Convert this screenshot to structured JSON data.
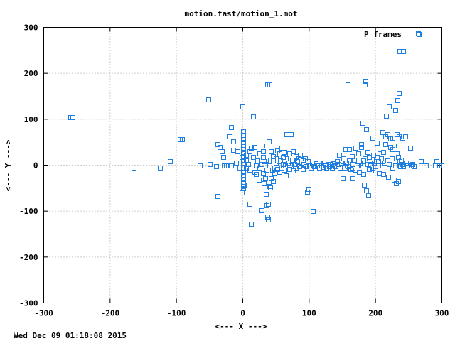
{
  "chart_data": {
    "type": "scatter",
    "title": "motion.fast/motion_1.mot",
    "xlabel": "<--- X --->",
    "ylabel": "<--- Y --->",
    "xlim": [
      -300,
      300
    ],
    "ylim": [
      -300,
      300
    ],
    "xticks": [
      -300,
      -200,
      -100,
      0,
      100,
      200,
      300
    ],
    "yticks": [
      -300,
      -200,
      -100,
      0,
      100,
      200,
      300
    ],
    "xtick_labels": [
      "-300",
      "-200",
      "-100",
      "0",
      "100",
      "200",
      "300"
    ],
    "ytick_labels": [
      "-300",
      "-200",
      "-100",
      "0",
      "100",
      "200",
      "300"
    ],
    "grid": true,
    "legend_position": "top-right",
    "series": [
      {
        "name": "P frames",
        "color": "#1e7fe0",
        "marker": "square",
        "points": [
          [
            -260,
            105
          ],
          [
            -257,
            105
          ],
          [
            -165,
            -5
          ],
          [
            -125,
            -5
          ],
          [
            -110,
            8
          ],
          [
            -95,
            57
          ],
          [
            -92,
            57
          ],
          [
            -65,
            0
          ],
          [
            -52,
            143
          ],
          [
            -50,
            3
          ],
          [
            -40,
            -2
          ],
          [
            -38,
            -68
          ],
          [
            -38,
            45
          ],
          [
            -35,
            40
          ],
          [
            -32,
            30
          ],
          [
            -30,
            18
          ],
          [
            -28,
            0
          ],
          [
            -25,
            0
          ],
          [
            -20,
            63
          ],
          [
            -18,
            0
          ],
          [
            -18,
            82
          ],
          [
            -15,
            33
          ],
          [
            -15,
            52
          ],
          [
            -10,
            5
          ],
          [
            -8,
            30
          ],
          [
            -5,
            -5
          ],
          [
            -2,
            18
          ],
          [
            -1,
            128
          ],
          [
            0,
            73
          ],
          [
            0,
            65
          ],
          [
            0,
            57
          ],
          [
            0,
            50
          ],
          [
            0,
            42
          ],
          [
            0,
            35
          ],
          [
            0,
            28
          ],
          [
            0,
            20
          ],
          [
            0,
            12
          ],
          [
            0,
            5
          ],
          [
            0,
            -5
          ],
          [
            0,
            -15
          ],
          [
            0,
            -22
          ],
          [
            0,
            -30
          ],
          [
            0,
            -38
          ],
          [
            0,
            -45
          ],
          [
            0,
            -50
          ],
          [
            -2,
            -60
          ],
          [
            2,
            -42
          ],
          [
            5,
            -5
          ],
          [
            5,
            10
          ],
          [
            5,
            22
          ],
          [
            8,
            2
          ],
          [
            10,
            -10
          ],
          [
            10,
            30
          ],
          [
            10,
            -85
          ],
          [
            12,
            -128
          ],
          [
            12,
            38
          ],
          [
            15,
            106
          ],
          [
            15,
            18
          ],
          [
            18,
            -15
          ],
          [
            18,
            40
          ],
          [
            20,
            0
          ],
          [
            20,
            -20
          ],
          [
            22,
            10
          ],
          [
            24,
            -32
          ],
          [
            25,
            25
          ],
          [
            25,
            -5
          ],
          [
            28,
            2
          ],
          [
            28,
            -98
          ],
          [
            30,
            18
          ],
          [
            30,
            -18
          ],
          [
            30,
            30
          ],
          [
            32,
            -40
          ],
          [
            32,
            8
          ],
          [
            34,
            -28
          ],
          [
            35,
            12
          ],
          [
            35,
            -62
          ],
          [
            36,
            42
          ],
          [
            36,
            -88
          ],
          [
            36,
            -10
          ],
          [
            37,
            -112
          ],
          [
            37,
            175
          ],
          [
            38,
            -118
          ],
          [
            38,
            -85
          ],
          [
            39,
            52
          ],
          [
            40,
            0
          ],
          [
            40,
            175
          ],
          [
            40,
            -45
          ],
          [
            41,
            -48
          ],
          [
            42,
            -28
          ],
          [
            42,
            30
          ],
          [
            44,
            -10
          ],
          [
            45,
            10
          ],
          [
            45,
            -35
          ],
          [
            46,
            20
          ],
          [
            48,
            -5
          ],
          [
            48,
            -18
          ],
          [
            50,
            5
          ],
          [
            50,
            15
          ],
          [
            52,
            -8
          ],
          [
            52,
            32
          ],
          [
            54,
            0
          ],
          [
            55,
            -15
          ],
          [
            55,
            25
          ],
          [
            56,
            10
          ],
          [
            58,
            -5
          ],
          [
            58,
            38
          ],
          [
            60,
            2
          ],
          [
            60,
            18
          ],
          [
            62,
            -10
          ],
          [
            62,
            28
          ],
          [
            64,
            0
          ],
          [
            65,
            15
          ],
          [
            65,
            -22
          ],
          [
            66,
            68
          ],
          [
            68,
            5
          ],
          [
            70,
            -8
          ],
          [
            70,
            25
          ],
          [
            72,
            68
          ],
          [
            72,
            0
          ],
          [
            74,
            12
          ],
          [
            75,
            -12
          ],
          [
            76,
            30
          ],
          [
            78,
            2
          ],
          [
            80,
            20
          ],
          [
            80,
            -5
          ],
          [
            82,
            8
          ],
          [
            84,
            15
          ],
          [
            85,
            -2
          ],
          [
            86,
            22
          ],
          [
            88,
            5
          ],
          [
            90,
            10
          ],
          [
            90,
            -8
          ],
          [
            92,
            2
          ],
          [
            94,
            15
          ],
          [
            95,
            -2
          ],
          [
            97,
            -58
          ],
          [
            98,
            8
          ],
          [
            99,
            -52
          ],
          [
            100,
            0
          ],
          [
            102,
            -5
          ],
          [
            104,
            6
          ],
          [
            106,
            -100
          ],
          [
            108,
            -3
          ],
          [
            110,
            4
          ],
          [
            112,
            0
          ],
          [
            115,
            -6
          ],
          [
            116,
            5
          ],
          [
            118,
            0
          ],
          [
            120,
            -4
          ],
          [
            122,
            6
          ],
          [
            124,
            0
          ],
          [
            126,
            -5
          ],
          [
            128,
            3
          ],
          [
            130,
            -2
          ],
          [
            132,
            2
          ],
          [
            134,
            -6
          ],
          [
            136,
            4
          ],
          [
            138,
            0
          ],
          [
            140,
            -3
          ],
          [
            142,
            8
          ],
          [
            144,
            2
          ],
          [
            145,
            22
          ],
          [
            146,
            -5
          ],
          [
            148,
            5
          ],
          [
            150,
            -28
          ],
          [
            150,
            0
          ],
          [
            152,
            15
          ],
          [
            154,
            -6
          ],
          [
            155,
            35
          ],
          [
            156,
            5
          ],
          [
            158,
            176
          ],
          [
            158,
            -2
          ],
          [
            160,
            10
          ],
          [
            160,
            35
          ],
          [
            162,
            -8
          ],
          [
            164,
            20
          ],
          [
            165,
            -28
          ],
          [
            165,
            2
          ],
          [
            166,
            -5
          ],
          [
            168,
            12
          ],
          [
            170,
            -10
          ],
          [
            170,
            38
          ],
          [
            172,
            0
          ],
          [
            174,
            25
          ],
          [
            175,
            -15
          ],
          [
            176,
            5
          ],
          [
            178,
            40
          ],
          [
            178,
            45
          ],
          [
            180,
            0
          ],
          [
            180,
            92
          ],
          [
            182,
            -20
          ],
          [
            182,
            10
          ],
          [
            183,
            -42
          ],
          [
            184,
            15
          ],
          [
            184,
            176
          ],
          [
            185,
            183
          ],
          [
            186,
            -55
          ],
          [
            186,
            78
          ],
          [
            188,
            3
          ],
          [
            188,
            28
          ],
          [
            189,
            -66
          ],
          [
            190,
            -8
          ],
          [
            190,
            18
          ],
          [
            192,
            0
          ],
          [
            194,
            12
          ],
          [
            195,
            -5
          ],
          [
            196,
            60
          ],
          [
            197,
            22
          ],
          [
            198,
            5
          ],
          [
            200,
            0
          ],
          [
            200,
            -12
          ],
          [
            202,
            48
          ],
          [
            202,
            18
          ],
          [
            204,
            8
          ],
          [
            205,
            -18
          ],
          [
            206,
            25
          ],
          [
            208,
            15
          ],
          [
            210,
            0
          ],
          [
            210,
            72
          ],
          [
            212,
            -20
          ],
          [
            212,
            28
          ],
          [
            214,
            5
          ],
          [
            215,
            45
          ],
          [
            215,
            62
          ],
          [
            216,
            108
          ],
          [
            218,
            10
          ],
          [
            218,
            68
          ],
          [
            219,
            -25
          ],
          [
            220,
            128
          ],
          [
            220,
            2
          ],
          [
            222,
            40
          ],
          [
            222,
            58
          ],
          [
            224,
            15
          ],
          [
            225,
            60
          ],
          [
            225,
            -5
          ],
          [
            226,
            35
          ],
          [
            228,
            -32
          ],
          [
            228,
            42
          ],
          [
            230,
            0
          ],
          [
            230,
            120
          ],
          [
            231,
            -40
          ],
          [
            232,
            25
          ],
          [
            232,
            68
          ],
          [
            233,
            142
          ],
          [
            234,
            -35
          ],
          [
            234,
            18
          ],
          [
            235,
            157
          ],
          [
            235,
            63
          ],
          [
            236,
            8
          ],
          [
            236,
            248
          ],
          [
            237,
            -2
          ],
          [
            238,
            12
          ],
          [
            240,
            2
          ],
          [
            240,
            60
          ],
          [
            242,
            -3
          ],
          [
            242,
            248
          ],
          [
            244,
            0
          ],
          [
            245,
            62
          ],
          [
            246,
            5
          ],
          [
            248,
            0
          ],
          [
            250,
            0
          ],
          [
            252,
            38
          ],
          [
            253,
            0
          ],
          [
            255,
            2
          ],
          [
            258,
            -3
          ],
          [
            265,
            285
          ],
          [
            268,
            8
          ],
          [
            276,
            0
          ],
          [
            290,
            0
          ],
          [
            292,
            8
          ],
          [
            296,
            0
          ],
          [
            299,
            0
          ]
        ]
      }
    ]
  },
  "footer": {
    "timestamp": "Wed Dec 09 01:18:08 2015"
  }
}
